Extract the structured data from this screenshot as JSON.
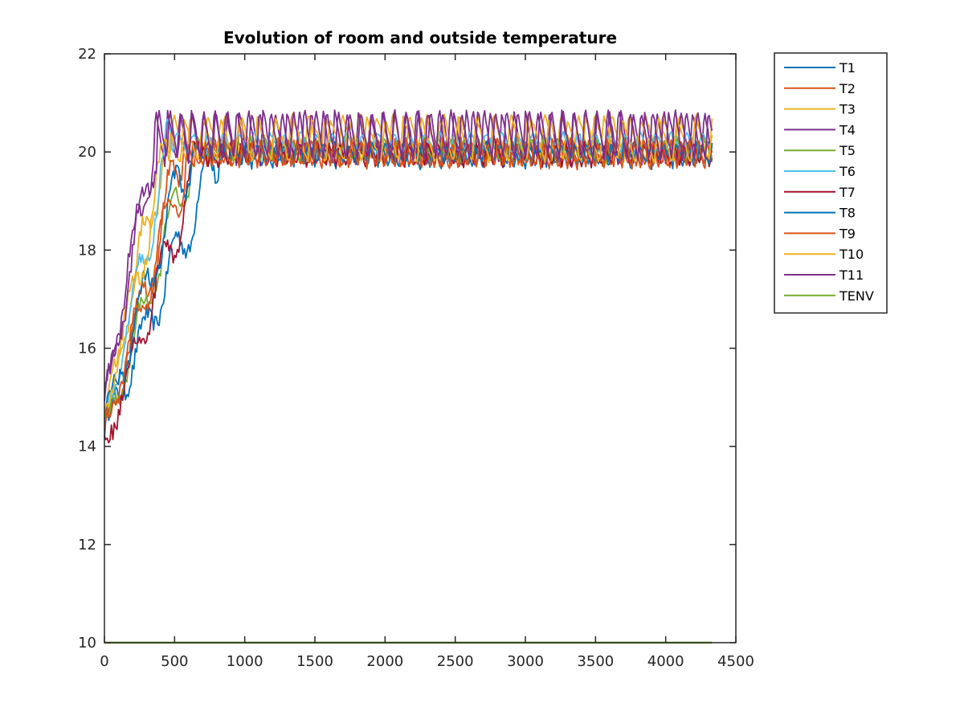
{
  "chart_data": {
    "type": "line",
    "title": "Evolution of room and outside temperature",
    "xlabel": "",
    "ylabel": "",
    "xlim": [
      0,
      4500
    ],
    "ylim": [
      10,
      22
    ],
    "xticks": [
      0,
      500,
      1000,
      1500,
      2000,
      2500,
      3000,
      3500,
      4000,
      4500
    ],
    "yticks": [
      10,
      12,
      14,
      16,
      18,
      20,
      22
    ],
    "grid": false,
    "legend_position": "outside-top-right",
    "series": [
      {
        "name": "T1",
        "color": "#0072BD",
        "start": 14.3,
        "rise_end": 820,
        "amp": 0.25,
        "period": 75,
        "phase": 0.0,
        "offset": 0.05
      },
      {
        "name": "T2",
        "color": "#D95319",
        "start": 14.2,
        "rise_end": 560,
        "amp": 0.3,
        "period": 60,
        "phase": 1.1,
        "offset": 0.05
      },
      {
        "name": "T3",
        "color": "#EDB120",
        "start": 14.6,
        "rise_end": 450,
        "amp": 0.5,
        "period": 120,
        "phase": 0.4,
        "offset": 0.35
      },
      {
        "name": "T4",
        "color": "#7E2F8E",
        "start": 15.0,
        "rise_end": 360,
        "amp": 0.55,
        "period": 85,
        "phase": 2.0,
        "offset": 0.35
      },
      {
        "name": "T5",
        "color": "#77AC30",
        "start": 14.2,
        "rise_end": 650,
        "amp": 0.25,
        "period": 95,
        "phase": 0.7,
        "offset": 0.15
      },
      {
        "name": "T6",
        "color": "#4DBEEE",
        "start": 14.4,
        "rise_end": 480,
        "amp": 0.2,
        "period": 110,
        "phase": 1.6,
        "offset": 0.3
      },
      {
        "name": "T7",
        "color": "#A2142F",
        "start": 14.0,
        "rise_end": 700,
        "amp": 0.25,
        "period": 70,
        "phase": 2.4,
        "offset": 0.05
      },
      {
        "name": "T8",
        "color": "#0072BD",
        "start": 14.5,
        "rise_end": 620,
        "amp": 0.2,
        "period": 90,
        "phase": 0.2,
        "offset": 0.1
      },
      {
        "name": "T9",
        "color": "#D95319",
        "start": 14.3,
        "rise_end": 600,
        "amp": 0.3,
        "period": 65,
        "phase": 1.9,
        "offset": 0.05
      },
      {
        "name": "T10",
        "color": "#EDB120",
        "start": 14.7,
        "rise_end": 470,
        "amp": 0.45,
        "period": 130,
        "phase": 2.8,
        "offset": 0.3
      },
      {
        "name": "T11",
        "color": "#7E2F8E",
        "start": 14.9,
        "rise_end": 380,
        "amp": 0.55,
        "period": 80,
        "phase": 0.9,
        "offset": 0.4
      },
      {
        "name": "TENV",
        "color": "#77AC30",
        "constant": 10
      }
    ],
    "x_end": 4330,
    "steady_level": 20.0
  }
}
